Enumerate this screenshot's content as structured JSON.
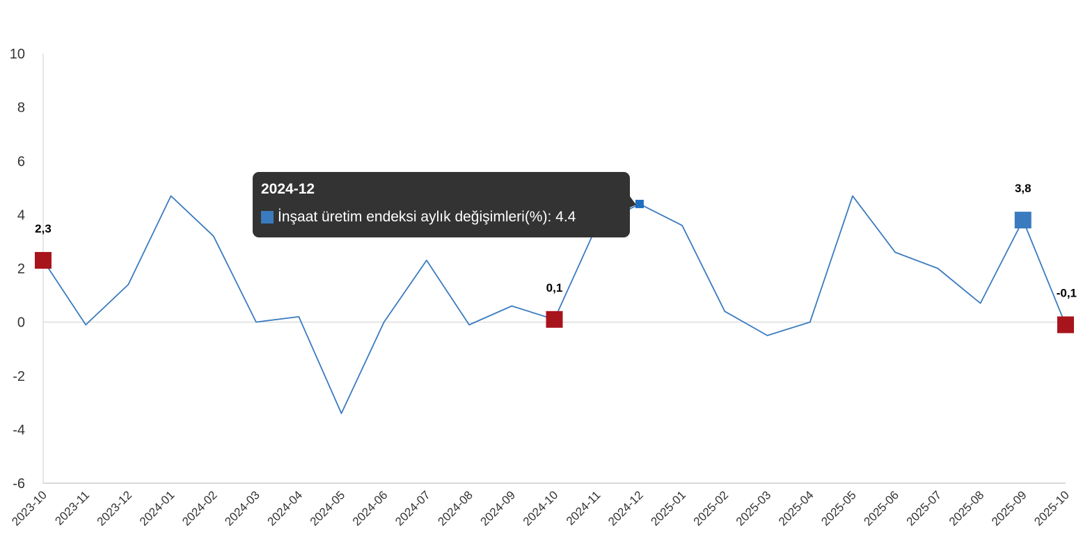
{
  "chart_data": {
    "type": "line",
    "x": [
      "2023-10",
      "2023-11",
      "2023-12",
      "2024-01",
      "2024-02",
      "2024-03",
      "2024-04",
      "2024-05",
      "2024-06",
      "2024-07",
      "2024-08",
      "2024-09",
      "2024-10",
      "2024-11",
      "2024-12",
      "2025-01",
      "2025-02",
      "2025-03",
      "2025-04",
      "2025-05",
      "2025-06",
      "2025-07",
      "2025-08",
      "2025-09",
      "2025-10"
    ],
    "series": [
      {
        "name": "İnşaat üretim endeksi aylık değişimleri(%)",
        "values": [
          2.3,
          -0.1,
          1.4,
          4.7,
          3.2,
          0.0,
          0.2,
          -3.4,
          0.0,
          2.3,
          -0.1,
          0.6,
          0.1,
          3.6,
          4.4,
          3.6,
          0.4,
          -0.5,
          0.0,
          4.7,
          2.6,
          2.0,
          0.7,
          3.8,
          -0.1
        ]
      }
    ],
    "ylim": [
      -6,
      10
    ],
    "yticks": [
      10,
      8,
      6,
      4,
      2,
      0,
      -2,
      -4,
      -6
    ],
    "highlights": [
      {
        "index": 0,
        "label": "2,3",
        "color": "#a8141c"
      },
      {
        "index": 12,
        "label": "0,1",
        "color": "#a8141c"
      },
      {
        "index": 23,
        "label": "3,8",
        "color": "#3a7bbf"
      },
      {
        "index": 24,
        "label": "-0,1",
        "color": "#a8141c"
      }
    ],
    "line_color": "#3a7bbf",
    "hover_index": 14,
    "grid": false,
    "legend": "none"
  },
  "tooltip": {
    "title": "2024-12",
    "series_name": "İnşaat üretim endeksi aylık değişimleri(%)",
    "value": "4.4"
  }
}
